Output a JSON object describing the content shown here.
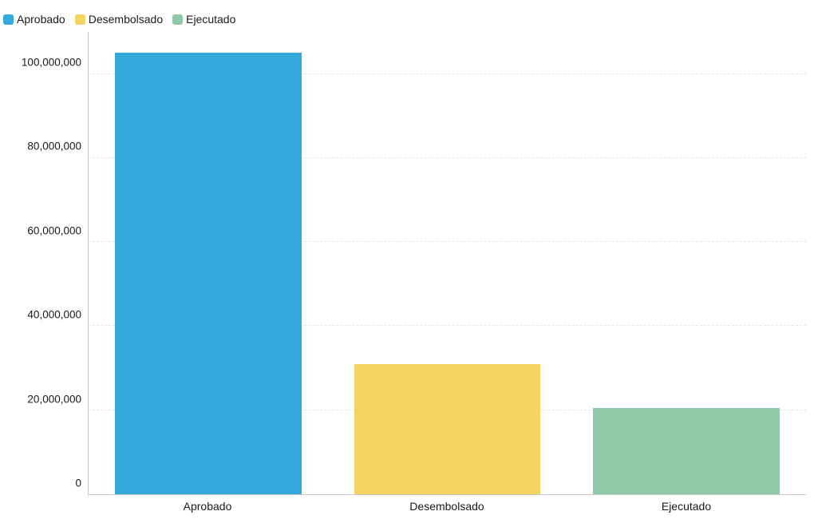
{
  "chart": {
    "type": "bar",
    "background_color": "#ffffff",
    "text_color": "#1a1a1a",
    "legend_fontsize": 14,
    "label_fontsize": 14,
    "tick_fontsize": 13.5,
    "axis_line_color": "#c8c8c8",
    "grid_color": "#e5e5e5",
    "grid_dash": "4 4",
    "ylim_min": 0,
    "ylim_max": 110000000,
    "yticks": [
      {
        "value": 0,
        "label": "0"
      },
      {
        "value": 20000000,
        "label": "20,000,000"
      },
      {
        "value": 40000000,
        "label": "40,000,000"
      },
      {
        "value": 60000000,
        "label": "60,000,000"
      },
      {
        "value": 80000000,
        "label": "80,000,000"
      },
      {
        "value": 100000000,
        "label": "100,000,000"
      }
    ],
    "bar_width": 0.78,
    "legend": [
      {
        "label": "Aprobado",
        "color": "#35a9db"
      },
      {
        "label": "Desembolsado",
        "color": "#f3d463"
      },
      {
        "label": "Ejecutado",
        "color": "#8fc9a8"
      }
    ],
    "series": [
      {
        "category": "Aprobado",
        "value": 105000000,
        "color": "#35a9db"
      },
      {
        "category": "Desembolsado",
        "value": 31000000,
        "color": "#f3d463"
      },
      {
        "category": "Ejecutado",
        "value": 20500000,
        "color": "#8fc9a8"
      }
    ]
  }
}
